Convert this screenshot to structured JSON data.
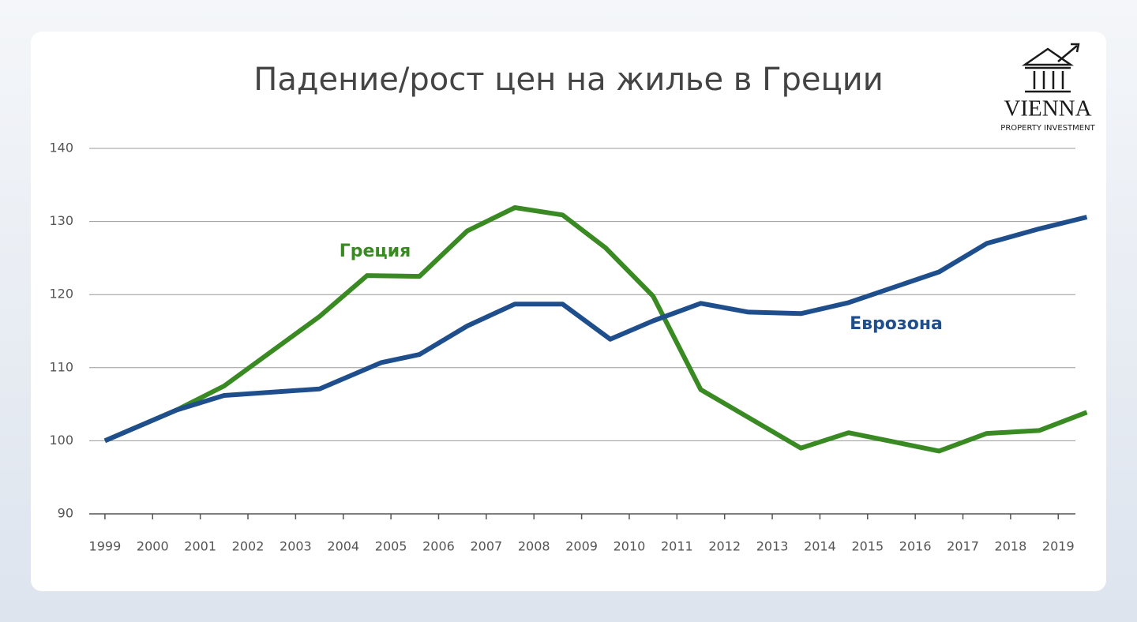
{
  "chart_data": {
    "type": "line",
    "title": "Падение/рост цен на жилье в Греции",
    "xlim": [
      1998.67,
      2019.36
    ],
    "xticks": [
      1999,
      2000,
      2001,
      2002,
      2003,
      2004,
      2005,
      2006,
      2007,
      2008,
      2009,
      2010,
      2011,
      2012,
      2013,
      2014,
      2015,
      2016,
      2017,
      2018,
      2019
    ],
    "ylim": [
      90,
      140
    ],
    "yticks": [
      90,
      100,
      110,
      120,
      130,
      140
    ],
    "grid": true,
    "series": [
      {
        "name": "Греция",
        "color": "#3a8a23",
        "x": [
          1999,
          2000.5,
          2001.5,
          2003.5,
          2004.5,
          2005.6,
          2006.6,
          2007.6,
          2008.6,
          2009.5,
          2010.5,
          2011.5,
          2013.6,
          2014.6,
          2016.5,
          2017.5,
          2018.6,
          2019.6
        ],
        "values": [
          100,
          104.2,
          107.5,
          117.0,
          122.6,
          122.5,
          128.7,
          131.9,
          130.9,
          126.4,
          119.8,
          107.0,
          99.0,
          101.1,
          98.6,
          101.0,
          101.4,
          103.9
        ]
      },
      {
        "name": "Еврозона",
        "color": "#1f4e8c",
        "x": [
          1999,
          2000.5,
          2001.5,
          2003.5,
          2004.8,
          2005.6,
          2006.6,
          2007.6,
          2008.6,
          2009.6,
          2010.5,
          2011.5,
          2012.5,
          2013.6,
          2014.6,
          2016.5,
          2017.5,
          2018.6,
          2019.6
        ],
        "values": [
          100,
          104.2,
          106.2,
          107.1,
          110.7,
          111.8,
          115.7,
          118.7,
          118.7,
          113.9,
          116.4,
          118.8,
          117.6,
          117.4,
          118.9,
          123.1,
          127.0,
          129.0,
          130.6
        ]
      }
    ]
  },
  "logo": {
    "name": "VIENNA",
    "tagline": "PROPERTY INVESTMENT"
  }
}
